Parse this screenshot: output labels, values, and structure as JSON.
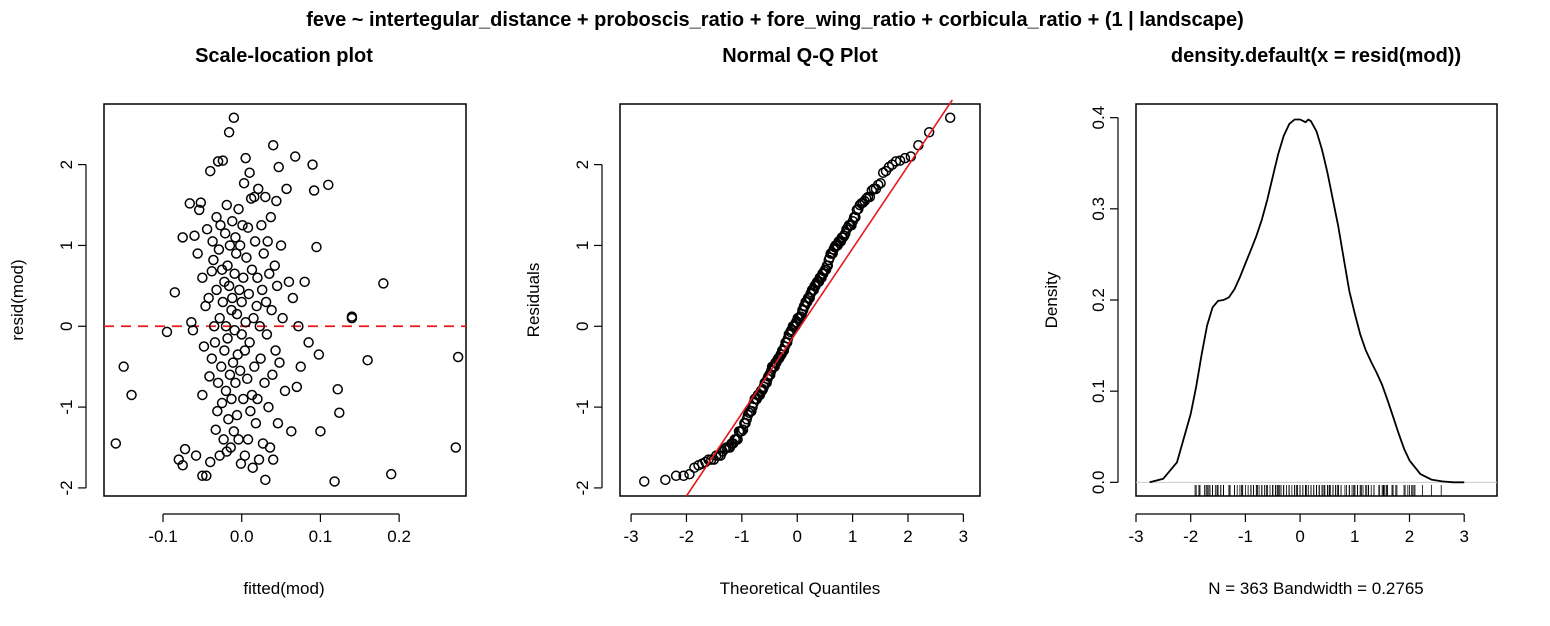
{
  "figure": {
    "suptitle": "feve ~ intertegular_distance + proboscis_ratio + fore_wing_ratio + corbicula_ratio + (1 | landscape)"
  },
  "colors": {
    "points": "#000000",
    "reference_line": "#e41a1c",
    "axes": "#000000"
  },
  "chart_data": [
    {
      "type": "scatter",
      "title": "Scale-location plot",
      "xlabel": "fitted(mod)",
      "ylabel": "resid(mod)",
      "xlim": [
        -0.175,
        0.285
      ],
      "ylim": [
        -2.1,
        2.75
      ],
      "xticks": [
        -0.1,
        0.0,
        0.1,
        0.2
      ],
      "xtick_labels": [
        "-0.1",
        "0.0",
        "0.1",
        "0.2"
      ],
      "yticks": [
        -2,
        -1,
        0,
        1,
        2
      ],
      "ytick_labels": [
        "-2",
        "-1",
        "0",
        "1",
        "2"
      ],
      "reference_line": {
        "y": 0,
        "style": "dashed"
      },
      "grid": false,
      "points": [
        [
          -0.16,
          -1.45
        ],
        [
          -0.15,
          -0.5
        ],
        [
          -0.14,
          -0.85
        ],
        [
          -0.095,
          -0.07
        ],
        [
          -0.085,
          0.42
        ],
        [
          -0.08,
          -1.65
        ],
        [
          -0.075,
          1.1
        ],
        [
          -0.075,
          -1.72
        ],
        [
          -0.072,
          -1.52
        ],
        [
          -0.066,
          1.52
        ],
        [
          -0.064,
          0.05
        ],
        [
          -0.062,
          -0.05
        ],
        [
          -0.06,
          1.12
        ],
        [
          -0.058,
          -1.6
        ],
        [
          -0.056,
          0.9
        ],
        [
          -0.054,
          1.44
        ],
        [
          -0.052,
          1.53
        ],
        [
          -0.05,
          -0.85
        ],
        [
          -0.05,
          0.6
        ],
        [
          -0.05,
          -1.85
        ],
        [
          -0.048,
          -0.25
        ],
        [
          -0.046,
          0.25
        ],
        [
          -0.045,
          -1.85
        ],
        [
          -0.044,
          1.2
        ],
        [
          -0.042,
          0.35
        ],
        [
          -0.041,
          -0.62
        ],
        [
          -0.04,
          1.92
        ],
        [
          -0.04,
          -1.68
        ],
        [
          -0.038,
          0.68
        ],
        [
          -0.038,
          -0.4
        ],
        [
          -0.037,
          1.05
        ],
        [
          -0.036,
          0.82
        ],
        [
          -0.035,
          0.0
        ],
        [
          -0.034,
          -0.2
        ],
        [
          -0.033,
          -1.28
        ],
        [
          -0.032,
          1.35
        ],
        [
          -0.032,
          0.45
        ],
        [
          -0.031,
          -1.05
        ],
        [
          -0.03,
          2.04
        ],
        [
          -0.03,
          -0.7
        ],
        [
          -0.029,
          0.95
        ],
        [
          -0.028,
          0.1
        ],
        [
          -0.028,
          -1.6
        ],
        [
          -0.027,
          1.25
        ],
        [
          -0.026,
          -0.5
        ],
        [
          -0.025,
          0.7
        ],
        [
          -0.025,
          -0.95
        ],
        [
          -0.024,
          2.05
        ],
        [
          -0.024,
          0.3
        ],
        [
          -0.023,
          -1.4
        ],
        [
          -0.022,
          0.55
        ],
        [
          -0.022,
          -0.3
        ],
        [
          -0.021,
          1.15
        ],
        [
          -0.02,
          -0.8
        ],
        [
          -0.02,
          0.0
        ],
        [
          -0.019,
          1.5
        ],
        [
          -0.019,
          -1.55
        ],
        [
          -0.018,
          0.75
        ],
        [
          -0.018,
          -0.15
        ],
        [
          -0.017,
          -1.15
        ],
        [
          -0.016,
          2.4
        ],
        [
          -0.016,
          0.5
        ],
        [
          -0.015,
          -0.6
        ],
        [
          -0.015,
          1.0
        ],
        [
          -0.014,
          -1.5
        ],
        [
          -0.013,
          0.2
        ],
        [
          -0.013,
          -0.9
        ],
        [
          -0.012,
          1.3
        ],
        [
          -0.012,
          0.35
        ],
        [
          -0.011,
          -0.45
        ],
        [
          -0.01,
          2.58
        ],
        [
          -0.01,
          -1.3
        ],
        [
          -0.009,
          0.65
        ],
        [
          -0.009,
          -0.05
        ],
        [
          -0.008,
          1.1
        ],
        [
          -0.008,
          -0.7
        ],
        [
          -0.007,
          0.9
        ],
        [
          -0.006,
          -1.1
        ],
        [
          -0.006,
          0.15
        ],
        [
          -0.005,
          -0.35
        ],
        [
          -0.004,
          1.45
        ],
        [
          -0.004,
          -1.4
        ],
        [
          -0.003,
          0.45
        ],
        [
          -0.002,
          -0.55
        ],
        [
          -0.002,
          1.0
        ],
        [
          -0.001,
          -1.7
        ],
        [
          0.0,
          0.3
        ],
        [
          0.0,
          -0.1
        ],
        [
          0.001,
          1.25
        ],
        [
          0.002,
          -0.9
        ],
        [
          0.002,
          0.6
        ],
        [
          0.003,
          1.77
        ],
        [
          0.004,
          -0.3
        ],
        [
          0.004,
          -1.6
        ],
        [
          0.005,
          2.08
        ],
        [
          0.005,
          0.05
        ],
        [
          0.006,
          0.85
        ],
        [
          0.007,
          -0.65
        ],
        [
          0.008,
          1.22
        ],
        [
          0.008,
          -1.4
        ],
        [
          0.009,
          0.4
        ],
        [
          0.01,
          1.9
        ],
        [
          0.01,
          -0.2
        ],
        [
          0.011,
          -1.05
        ],
        [
          0.012,
          1.58
        ],
        [
          0.013,
          0.7
        ],
        [
          0.013,
          -0.85
        ],
        [
          0.014,
          -1.75
        ],
        [
          0.015,
          0.1
        ],
        [
          0.016,
          1.6
        ],
        [
          0.016,
          -0.5
        ],
        [
          0.017,
          1.05
        ],
        [
          0.018,
          -1.2
        ],
        [
          0.019,
          0.25
        ],
        [
          0.02,
          -0.9
        ],
        [
          0.02,
          0.6
        ],
        [
          0.021,
          1.7
        ],
        [
          0.022,
          -1.65
        ],
        [
          0.023,
          0.0
        ],
        [
          0.024,
          -0.4
        ],
        [
          0.025,
          1.25
        ],
        [
          0.026,
          0.45
        ],
        [
          0.027,
          -1.45
        ],
        [
          0.028,
          0.9
        ],
        [
          0.029,
          -0.7
        ],
        [
          0.03,
          1.6
        ],
        [
          0.03,
          -1.9
        ],
        [
          0.031,
          0.3
        ],
        [
          0.032,
          -0.1
        ],
        [
          0.033,
          1.05
        ],
        [
          0.034,
          -1.0
        ],
        [
          0.035,
          0.65
        ],
        [
          0.036,
          -1.5
        ],
        [
          0.037,
          1.35
        ],
        [
          0.038,
          0.2
        ],
        [
          0.039,
          -0.6
        ],
        [
          0.04,
          2.24
        ],
        [
          0.04,
          -1.65
        ],
        [
          0.042,
          0.75
        ],
        [
          0.043,
          -0.3
        ],
        [
          0.044,
          1.55
        ],
        [
          0.045,
          0.5
        ],
        [
          0.046,
          -1.2
        ],
        [
          0.047,
          1.97
        ],
        [
          0.048,
          -0.45
        ],
        [
          0.05,
          1.0
        ],
        [
          0.052,
          0.1
        ],
        [
          0.055,
          -0.8
        ],
        [
          0.057,
          1.7
        ],
        [
          0.06,
          0.55
        ],
        [
          0.063,
          -1.3
        ],
        [
          0.065,
          0.35
        ],
        [
          0.068,
          2.1
        ],
        [
          0.07,
          -0.75
        ],
        [
          0.072,
          0.0
        ],
        [
          0.075,
          -0.5
        ],
        [
          0.08,
          0.55
        ],
        [
          0.085,
          -0.2
        ],
        [
          0.09,
          2.0
        ],
        [
          0.092,
          1.68
        ],
        [
          0.095,
          0.98
        ],
        [
          0.098,
          -0.35
        ],
        [
          0.1,
          -1.3
        ],
        [
          0.11,
          1.75
        ],
        [
          0.118,
          -1.92
        ],
        [
          0.122,
          -0.78
        ],
        [
          0.124,
          -1.07
        ],
        [
          0.14,
          0.1
        ],
        [
          0.14,
          0.12
        ],
        [
          0.16,
          -0.42
        ],
        [
          0.18,
          0.53
        ],
        [
          0.19,
          -1.83
        ],
        [
          0.272,
          -1.5
        ],
        [
          0.275,
          -0.38
        ]
      ]
    },
    {
      "type": "scatter",
      "title": "Normal Q-Q Plot",
      "xlabel": "Theoretical Quantiles",
      "ylabel": "Residuals",
      "xlim": [
        -3.2,
        3.3
      ],
      "ylim": [
        -2.1,
        2.75
      ],
      "xticks": [
        -3,
        -2,
        -1,
        0,
        1,
        2,
        3
      ],
      "xtick_labels": [
        "-3",
        "-2",
        "-1",
        "0",
        "1",
        "2",
        "3"
      ],
      "yticks": [
        -2,
        -1,
        0,
        1,
        2
      ],
      "ytick_labels": [
        "-2",
        "-1",
        "0",
        "1",
        "2"
      ],
      "reference_line": {
        "x1": -2.0,
        "y1": -2.1,
        "x2": 2.8,
        "y2": 2.8,
        "style": "solid"
      },
      "grid": false,
      "n": 363,
      "extremes": {
        "min": [
          -3.0,
          -1.93
        ],
        "max": [
          3.0,
          2.58
        ]
      }
    },
    {
      "type": "line",
      "title": "density.default(x = resid(mod))",
      "xlabel": "N = 363   Bandwidth = 0.2765",
      "ylabel": "Density",
      "xlim": [
        -3.0,
        3.6
      ],
      "ylim": [
        -0.015,
        0.415
      ],
      "xticks": [
        -3,
        -2,
        -1,
        0,
        1,
        2,
        3
      ],
      "xtick_labels": [
        "-3",
        "-2",
        "-1",
        "0",
        "1",
        "2",
        "3"
      ],
      "yticks": [
        0.0,
        0.1,
        0.2,
        0.3,
        0.4
      ],
      "ytick_labels": [
        "0.0",
        "0.1",
        "0.2",
        "0.3",
        "0.4"
      ],
      "baseline": 0,
      "grid": false,
      "x": [
        -2.75,
        -2.5,
        -2.25,
        -2.0,
        -1.9,
        -1.8,
        -1.7,
        -1.6,
        -1.5,
        -1.4,
        -1.3,
        -1.2,
        -1.1,
        -1.0,
        -0.9,
        -0.8,
        -0.7,
        -0.6,
        -0.5,
        -0.4,
        -0.3,
        -0.2,
        -0.1,
        0.0,
        0.1,
        0.15,
        0.2,
        0.3,
        0.4,
        0.5,
        0.6,
        0.7,
        0.8,
        0.9,
        1.0,
        1.1,
        1.2,
        1.3,
        1.4,
        1.5,
        1.6,
        1.7,
        1.8,
        1.9,
        2.0,
        2.2,
        2.4,
        2.6,
        2.8,
        3.0
      ],
      "y": [
        0.0,
        0.004,
        0.022,
        0.075,
        0.105,
        0.14,
        0.172,
        0.192,
        0.199,
        0.2,
        0.203,
        0.212,
        0.225,
        0.24,
        0.255,
        0.27,
        0.288,
        0.31,
        0.335,
        0.36,
        0.38,
        0.393,
        0.398,
        0.398,
        0.395,
        0.398,
        0.396,
        0.385,
        0.365,
        0.34,
        0.31,
        0.28,
        0.245,
        0.21,
        0.185,
        0.162,
        0.145,
        0.132,
        0.12,
        0.107,
        0.09,
        0.072,
        0.054,
        0.037,
        0.024,
        0.009,
        0.003,
        0.001,
        0.0,
        0.0
      ],
      "rug": true,
      "rug_range": [
        -1.93,
        2.58
      ]
    }
  ]
}
